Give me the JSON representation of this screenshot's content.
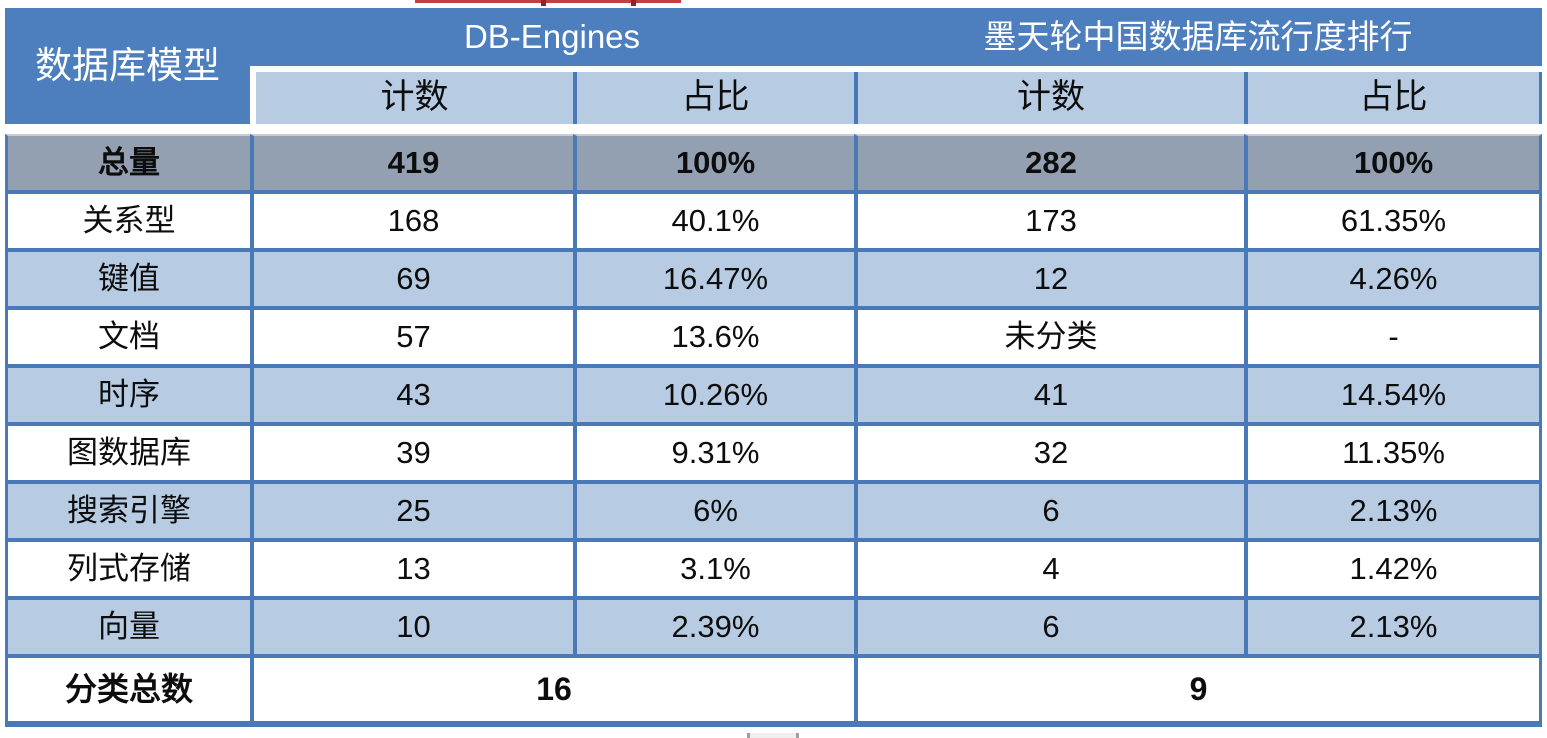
{
  "chart_data": {
    "type": "table",
    "corner_header": "数据库模型",
    "column_groups": [
      {
        "label": "DB-Engines",
        "subcolumns": [
          "计数",
          "占比"
        ]
      },
      {
        "label": "墨天轮中国数据库流行度排行",
        "subcolumns": [
          "计数",
          "占比"
        ]
      }
    ],
    "rows": [
      {
        "label": "总量",
        "values": [
          "419",
          "100%",
          "282",
          "100%"
        ],
        "emphasis": true
      },
      {
        "label": "关系型",
        "values": [
          "168",
          "40.1%",
          "173",
          "61.35%"
        ]
      },
      {
        "label": "键值",
        "values": [
          "69",
          "16.47%",
          "12",
          "4.26%"
        ]
      },
      {
        "label": "文档",
        "values": [
          "57",
          "13.6%",
          "未分类",
          "-"
        ]
      },
      {
        "label": "时序",
        "values": [
          "43",
          "10.26%",
          "41",
          "14.54%"
        ]
      },
      {
        "label": "图数据库",
        "values": [
          "39",
          "9.31%",
          "32",
          "11.35%"
        ]
      },
      {
        "label": "搜索引擎",
        "values": [
          "25",
          "6%",
          "6",
          "2.13%"
        ]
      },
      {
        "label": "列式存储",
        "values": [
          "13",
          "3.1%",
          "4",
          "1.42%"
        ]
      },
      {
        "label": "向量",
        "values": [
          "10",
          "2.39%",
          "6",
          "2.13%"
        ]
      }
    ],
    "footer_row": {
      "label": "分类总数",
      "values": [
        "16",
        "9"
      ]
    }
  },
  "colors": {
    "header_blue": "#4d7fbe",
    "subheader_light_blue": "#b7cbe2",
    "total_row_gray": "#93a0b2",
    "border_blue": "#4a79b8",
    "annotation_red": "#c24040"
  }
}
